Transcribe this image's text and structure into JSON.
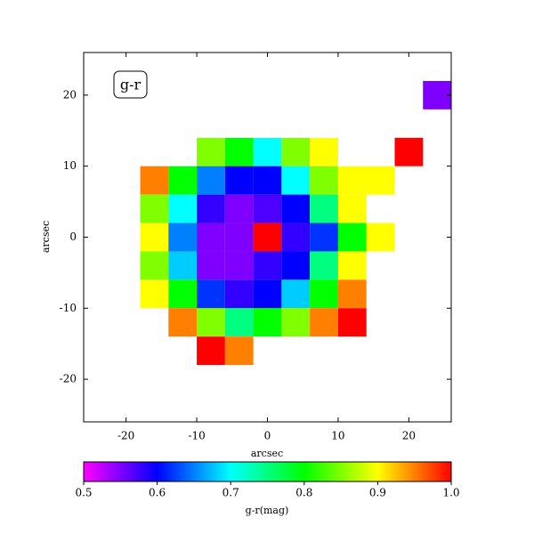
{
  "chart_data": {
    "type": "heatmap",
    "annotation": "g-r",
    "xlabel": "arcsec",
    "ylabel": "arcsec",
    "xlim": [
      -26,
      26
    ],
    "ylim": [
      -26,
      26
    ],
    "xticks": [
      -20,
      -10,
      0,
      10,
      20
    ],
    "yticks": [
      -20,
      -10,
      0,
      10,
      20
    ],
    "x": [
      -24,
      -20,
      -16,
      -12,
      -8,
      -4,
      0,
      4,
      8,
      12,
      16,
      20,
      24
    ],
    "y": [
      24,
      20,
      16,
      12,
      8,
      4,
      0,
      -4,
      -8,
      -12,
      -16,
      -20,
      -24
    ],
    "values": [
      [
        null,
        null,
        null,
        null,
        null,
        null,
        null,
        null,
        null,
        null,
        null,
        null,
        null
      ],
      [
        null,
        null,
        null,
        null,
        null,
        null,
        null,
        null,
        null,
        null,
        null,
        null,
        0.55
      ],
      [
        null,
        null,
        null,
        null,
        null,
        null,
        null,
        null,
        null,
        null,
        null,
        null,
        null
      ],
      [
        null,
        null,
        null,
        null,
        0.85,
        0.8,
        0.7,
        0.85,
        0.9,
        null,
        null,
        1.0,
        null
      ],
      [
        null,
        null,
        0.95,
        0.8,
        0.65,
        0.6,
        0.6,
        0.7,
        0.85,
        0.9,
        0.9,
        null,
        null
      ],
      [
        null,
        null,
        0.85,
        0.7,
        0.58,
        0.55,
        0.57,
        0.6,
        0.75,
        0.9,
        null,
        null,
        null
      ],
      [
        null,
        null,
        0.9,
        0.65,
        0.55,
        0.55,
        1.0,
        0.58,
        0.62,
        0.8,
        0.9,
        null,
        null
      ],
      [
        null,
        null,
        0.85,
        0.68,
        0.55,
        0.55,
        0.58,
        0.6,
        0.75,
        0.9,
        null,
        null,
        null
      ],
      [
        null,
        null,
        0.9,
        0.8,
        0.62,
        0.58,
        0.6,
        0.68,
        0.8,
        0.95,
        null,
        null,
        null
      ],
      [
        null,
        null,
        null,
        0.95,
        0.85,
        0.75,
        0.8,
        0.85,
        0.95,
        1.0,
        null,
        null,
        null
      ],
      [
        null,
        null,
        null,
        null,
        1.0,
        0.95,
        null,
        null,
        null,
        null,
        null,
        null,
        null
      ],
      [
        null,
        null,
        null,
        null,
        null,
        null,
        null,
        null,
        null,
        null,
        null,
        null,
        null
      ],
      [
        null,
        null,
        null,
        null,
        null,
        null,
        null,
        null,
        null,
        null,
        null,
        null,
        null
      ]
    ],
    "colormap": [
      "#ff00ff",
      "#0000ff",
      "#00ffff",
      "#00ff00",
      "#ffff00",
      "#ff0000"
    ],
    "clim": [
      0.5,
      1.0
    ],
    "cticks": [
      0.5,
      0.6,
      0.7,
      0.8,
      0.9,
      {
        "value": 1.0,
        "label": "1.0"
      }
    ],
    "colorbar_label": "g-r(mag)"
  }
}
